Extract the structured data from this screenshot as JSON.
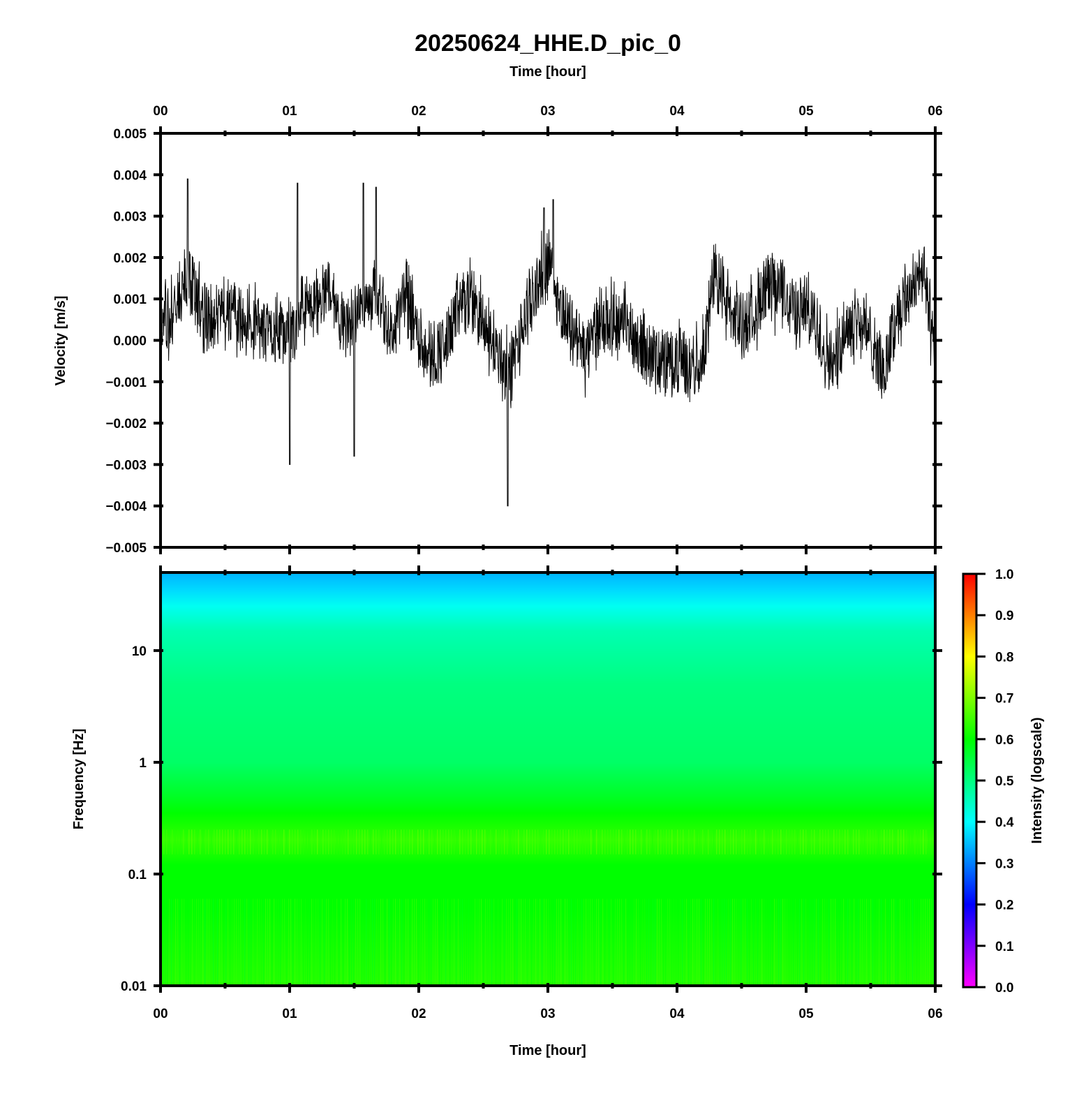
{
  "figure": {
    "title": "20250624_HHE.D_pic_0",
    "top_xlabel": "Time [hour]",
    "bottom_xlabel": "Time [hour]"
  },
  "chart_data": [
    {
      "type": "line",
      "name": "waveform",
      "xlabel": "Time [hour]",
      "ylabel": "Velocity [m/s]",
      "x_ticks": [
        "00",
        "01",
        "02",
        "03",
        "04",
        "05",
        "06"
      ],
      "xlim": [
        0,
        6
      ],
      "ylim": [
        -0.005,
        0.005
      ],
      "y_ticks": [
        "0.005",
        "0.004",
        "0.003",
        "0.002",
        "0.001",
        "0.000",
        "−0.001",
        "−0.002",
        "−0.003",
        "−0.004",
        "−0.005"
      ],
      "grid": false,
      "x": [
        0,
        0.1,
        0.2,
        0.3,
        0.4,
        0.5,
        0.6,
        0.7,
        0.8,
        0.9,
        1.0,
        1.1,
        1.2,
        1.3,
        1.4,
        1.5,
        1.6,
        1.7,
        1.8,
        1.9,
        2.0,
        2.1,
        2.2,
        2.3,
        2.4,
        2.5,
        2.6,
        2.7,
        2.8,
        2.9,
        3.0,
        3.1,
        3.2,
        3.3,
        3.4,
        3.5,
        3.6,
        3.7,
        3.8,
        3.9,
        4.0,
        4.1,
        4.2,
        4.3,
        4.4,
        4.5,
        4.6,
        4.7,
        4.8,
        4.9,
        5.0,
        5.1,
        5.2,
        5.3,
        5.4,
        5.5,
        5.6,
        5.7,
        5.8,
        5.9,
        6.0
      ],
      "y": [
        0.0003,
        0.0008,
        0.0018,
        0.0009,
        0.0003,
        0.0008,
        0.0005,
        0.0007,
        0.0002,
        0.0003,
        0.0,
        0.0009,
        0.0008,
        0.0012,
        0.0004,
        0.0005,
        0.0011,
        0.0009,
        0.0001,
        0.0012,
        0.0001,
        -0.0004,
        -0.0002,
        0.0007,
        0.0011,
        0.0004,
        -0.0002,
        -0.0009,
        0.0002,
        0.0012,
        0.002,
        0.0008,
        0.0002,
        -0.0004,
        0.0005,
        0.0005,
        0.0004,
        0.0,
        -0.0004,
        -0.0005,
        -0.0004,
        -0.0007,
        -0.0002,
        0.0016,
        0.0007,
        0.0004,
        0.0007,
        0.0011,
        0.0013,
        0.0007,
        0.0008,
        0.0002,
        -0.0006,
        0.0003,
        0.0005,
        0.0001,
        -0.0008,
        0.0006,
        0.0012,
        0.0018,
        -0.0003
      ],
      "peaks": [
        {
          "x": 0.21,
          "y": 0.0039
        },
        {
          "x": 1.0,
          "y": -0.003
        },
        {
          "x": 1.06,
          "y": 0.0038
        },
        {
          "x": 1.5,
          "y": -0.0028
        },
        {
          "x": 1.57,
          "y": 0.0038
        },
        {
          "x": 1.67,
          "y": 0.0037
        },
        {
          "x": 2.69,
          "y": -0.004
        },
        {
          "x": 2.97,
          "y": 0.0032
        },
        {
          "x": 3.04,
          "y": 0.0034
        }
      ],
      "color": "#000000"
    },
    {
      "type": "heatmap",
      "name": "spectrogram",
      "xlabel": "Time [hour]",
      "ylabel": "Frequency [Hz]",
      "x_ticks": [
        "00",
        "01",
        "02",
        "03",
        "04",
        "05",
        "06"
      ],
      "xlim": [
        0,
        6
      ],
      "y_scale": "log",
      "ylim": [
        0.01,
        50
      ],
      "y_ticks": [
        "10",
        "1",
        "0.1",
        "0.01"
      ],
      "y_tick_values": [
        10,
        1,
        0.1,
        0.01
      ],
      "intensity_by_frequency": [
        {
          "freq": 50,
          "intensity": 0.34
        },
        {
          "freq": 35,
          "intensity": 0.37
        },
        {
          "freq": 25,
          "intensity": 0.41
        },
        {
          "freq": 15,
          "intensity": 0.46
        },
        {
          "freq": 5,
          "intensity": 0.5
        },
        {
          "freq": 1,
          "intensity": 0.52
        },
        {
          "freq": 0.5,
          "intensity": 0.57
        },
        {
          "freq": 0.35,
          "intensity": 0.6
        },
        {
          "freq": 0.2,
          "intensity": 0.64
        },
        {
          "freq": 0.12,
          "intensity": 0.6
        },
        {
          "freq": 0.05,
          "intensity": 0.6
        },
        {
          "freq": 0.01,
          "intensity": 0.63
        }
      ],
      "colorbar": {
        "label": "Intensity (logscale)",
        "range": [
          0.0,
          1.0
        ],
        "ticks": [
          "0.0",
          "0.1",
          "0.2",
          "0.3",
          "0.4",
          "0.5",
          "0.6",
          "0.7",
          "0.8",
          "0.9",
          "1.0"
        ],
        "colormap": [
          "#ff00ff",
          "#0000ff",
          "#00ffff",
          "#00ff00",
          "#ffff00",
          "#ff0000"
        ]
      }
    }
  ]
}
